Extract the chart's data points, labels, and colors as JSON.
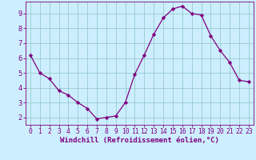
{
  "x": [
    0,
    1,
    2,
    3,
    4,
    5,
    6,
    7,
    8,
    9,
    10,
    11,
    12,
    13,
    14,
    15,
    16,
    17,
    18,
    19,
    20,
    21,
    22,
    23
  ],
  "y": [
    6.2,
    5.0,
    4.6,
    3.8,
    3.5,
    3.0,
    2.6,
    1.9,
    2.0,
    2.1,
    3.0,
    4.9,
    6.2,
    7.6,
    8.7,
    9.3,
    9.5,
    9.0,
    8.9,
    7.5,
    6.5,
    5.7,
    4.5,
    4.4
  ],
  "line_color": "#800080",
  "marker": "D",
  "marker_size": 2.2,
  "bg_color": "#cceeff",
  "grid_color": "#99cccc",
  "xlabel": "Windchill (Refroidissement éolien,°C)",
  "xlabel_color": "#800080",
  "tick_color": "#800080",
  "ylim": [
    1.5,
    9.8
  ],
  "xlim": [
    -0.5,
    23.5
  ],
  "yticks": [
    2,
    3,
    4,
    5,
    6,
    7,
    8,
    9
  ],
  "xticks": [
    0,
    1,
    2,
    3,
    4,
    5,
    6,
    7,
    8,
    9,
    10,
    11,
    12,
    13,
    14,
    15,
    16,
    17,
    18,
    19,
    20,
    21,
    22,
    23
  ],
  "tick_fontsize": 5.8,
  "xlabel_fontsize": 6.5
}
